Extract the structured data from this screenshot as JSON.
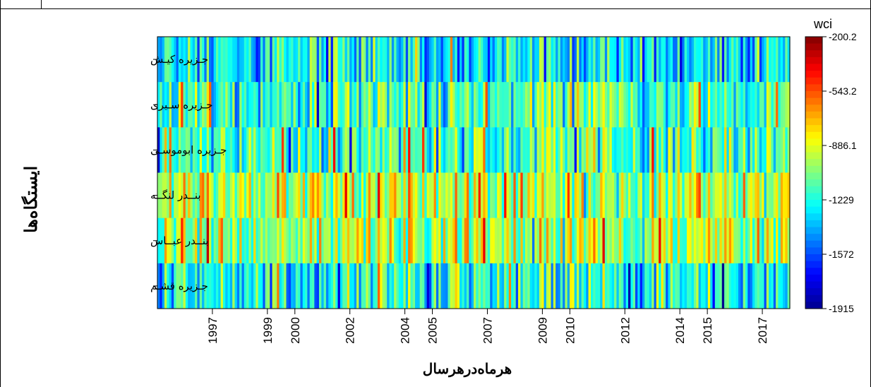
{
  "chart_data": {
    "type": "heatmap",
    "xlabel": "هرماه‌درهرسال",
    "ylabel": "ایستگاه‌ها",
    "colorbar_title": "wci",
    "stations": [
      "جـزیره کیـش",
      "جـزیره سـیری",
      "جـزیره ابوموسـی",
      "بنــدر لنگــه",
      "بنــدر عبــاس",
      "جـزیره قشـم"
    ],
    "x_tick_labels": [
      "1997",
      "1999",
      "2000",
      "2002",
      "2004",
      "2005",
      "2007",
      "2009",
      "2010",
      "2012",
      "2014",
      "2015",
      "2017"
    ],
    "x_tick_positions": [
      1997,
      1999,
      2000,
      2002,
      2004,
      2005,
      2007,
      2009,
      2010,
      2012,
      2014,
      2015,
      2017
    ],
    "xlim": [
      1995.0,
      2018.0
    ],
    "colorbar_ticks": [
      "-200.2",
      "-543.2",
      "-886.1",
      "-1229",
      "-1572",
      "-1915"
    ],
    "value_range": [
      -1915,
      -200.2
    ],
    "colormap": [
      "#00008F",
      "#0000FF",
      "#0080FF",
      "#00FFFF",
      "#80FF80",
      "#FFFF00",
      "#FF8000",
      "#FF0000",
      "#800000"
    ]
  }
}
